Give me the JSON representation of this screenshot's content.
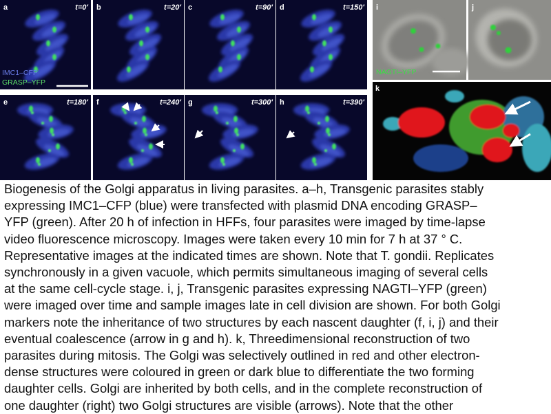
{
  "panels": [
    {
      "label": "a",
      "time": "t=0'"
    },
    {
      "label": "b",
      "time": "t=20'"
    },
    {
      "label": "c",
      "time": "t=90'"
    },
    {
      "label": "d",
      "time": "t=150'"
    },
    {
      "label": "e",
      "time": "t=180'"
    },
    {
      "label": "f",
      "time": "t=240'"
    },
    {
      "label": "g",
      "time": "t=300'"
    },
    {
      "label": "h",
      "time": "t=390'"
    }
  ],
  "legend": {
    "blue": "IMC1–CFP",
    "green": "GRASP–YFP"
  },
  "side_panels": {
    "i": "i",
    "j": "j",
    "k": "k",
    "nagti": "NAGTI–YFP"
  },
  "caption_lines": [
    "Biogenesis of the Golgi apparatus in living parasites. a–h, Transgenic parasites stably",
    "expressing IMC1–CFP (blue) were transfected with plasmid DNA encoding GRASP–",
    "YFP (green). After 20 h of infection in HFFs, four parasites were imaged by time-lapse",
    "video fluorescence microscopy. Images were taken every 10 min for 7 h at 37 ° C.",
    "Representative images at the indicated times are shown. Note that T. gondii. Replicates",
    "synchronously in a given vacuole, which permits simultaneous imaging of several cells",
    "at the same cell-cycle stage. i, j, Transgenic parasites expressing NAGTI–YFP (green)",
    "were imaged over time and sample images late in cell division are shown. For both Golgi",
    "markers note the inheritance of two structures by each nascent daughter (f, i, j) and their",
    "eventual coalescence (arrow in g and h). k, Threedimensional reconstruction of two",
    "parasites during mitosis. The Golgi was selectively outlined in red and other electron-",
    "dense structures were coloured in green or dark blue to differentiate the two forming",
    "daughter cells. Golgi are inherited by both cells, and in the complete reconstruction of",
    "one daughter (right) two Golgi structures are visible (arrows). Note that the other"
  ]
}
